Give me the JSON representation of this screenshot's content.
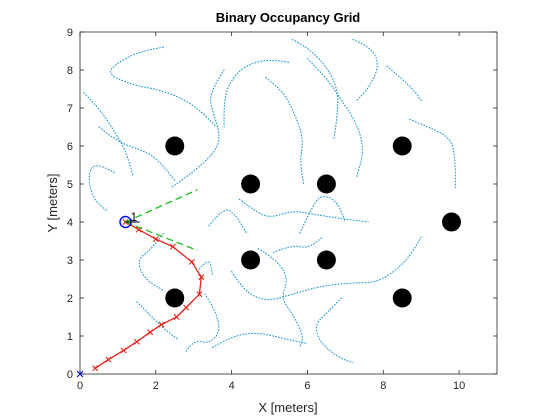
{
  "chart_data": {
    "type": "scatter",
    "title": "Binary Occupancy Grid",
    "xlabel": "X [meters]",
    "ylabel": "Y [meters]",
    "xlim": [
      0,
      11
    ],
    "ylim": [
      0,
      9
    ],
    "xticks": [
      0,
      2,
      4,
      6,
      8,
      10
    ],
    "yticks": [
      0,
      1,
      2,
      3,
      4,
      5,
      6,
      7,
      8,
      9
    ],
    "grid": false,
    "legend": "none",
    "obstacles": {
      "name": "occupied",
      "color": "#000000",
      "radius": 0.25,
      "points": [
        [
          2.5,
          6
        ],
        [
          8.5,
          6
        ],
        [
          4.5,
          5
        ],
        [
          6.5,
          5
        ],
        [
          9.8,
          4
        ],
        [
          4.5,
          3
        ],
        [
          6.5,
          3
        ],
        [
          2.5,
          2
        ],
        [
          8.5,
          2
        ]
      ]
    },
    "particle_trails": {
      "color": "#1e9bd7",
      "style": "dotted",
      "paths": [
        [
          [
            0.1,
            7.4
          ],
          [
            0.5,
            7.0
          ],
          [
            0.9,
            6.4
          ],
          [
            1.2,
            5.9
          ],
          [
            1.4,
            5.2
          ]
        ],
        [
          [
            0.9,
            5.3
          ],
          [
            0.4,
            5.6
          ],
          [
            0.2,
            5.2
          ],
          [
            0.35,
            4.6
          ],
          [
            0.7,
            4.3
          ]
        ],
        [
          [
            0.5,
            6.5
          ],
          [
            1.0,
            6.1
          ],
          [
            1.6,
            5.9
          ],
          [
            2.0,
            5.7
          ],
          [
            2.5,
            5.1
          ]
        ],
        [
          [
            2.2,
            8.6
          ],
          [
            1.6,
            8.5
          ],
          [
            1.0,
            8.2
          ],
          [
            0.7,
            7.9
          ],
          [
            1.4,
            7.6
          ],
          [
            2.0,
            7.5
          ],
          [
            2.6,
            7.3
          ],
          [
            3.1,
            7.0
          ],
          [
            3.6,
            6.5
          ]
        ],
        [
          [
            3.8,
            8.0
          ],
          [
            3.4,
            7.4
          ],
          [
            3.5,
            6.9
          ],
          [
            3.7,
            6.3
          ],
          [
            3.6,
            5.9
          ],
          [
            3.1,
            5.4
          ],
          [
            2.4,
            4.9
          ]
        ],
        [
          [
            5.5,
            8.2
          ],
          [
            5.0,
            8.3
          ],
          [
            4.3,
            8.1
          ],
          [
            3.9,
            7.6
          ],
          [
            3.8,
            7.1
          ],
          [
            3.8,
            6.5
          ]
        ],
        [
          [
            4.9,
            7.8
          ],
          [
            5.3,
            7.5
          ],
          [
            5.6,
            7.0
          ],
          [
            5.9,
            6.2
          ],
          [
            5.8,
            5.6
          ],
          [
            5.9,
            5.0
          ]
        ],
        [
          [
            5.6,
            8.8
          ],
          [
            6.0,
            8.6
          ],
          [
            6.5,
            8.1
          ],
          [
            6.8,
            7.5
          ],
          [
            6.8,
            6.9
          ],
          [
            6.7,
            6.2
          ]
        ],
        [
          [
            6.0,
            8.3
          ],
          [
            6.5,
            7.8
          ],
          [
            6.9,
            7.2
          ],
          [
            7.3,
            6.6
          ],
          [
            7.5,
            5.9
          ],
          [
            7.3,
            5.2
          ]
        ],
        [
          [
            7.2,
            8.8
          ],
          [
            7.7,
            8.6
          ],
          [
            7.9,
            8.1
          ],
          [
            7.6,
            7.5
          ],
          [
            7.3,
            7.2
          ]
        ],
        [
          [
            8.1,
            8.1
          ],
          [
            8.7,
            7.6
          ],
          [
            9.0,
            7.2
          ]
        ],
        [
          [
            8.7,
            6.7
          ],
          [
            9.2,
            6.5
          ],
          [
            9.8,
            6.2
          ],
          [
            9.9,
            5.6
          ],
          [
            9.9,
            4.9
          ]
        ],
        [
          [
            4.2,
            4.6
          ],
          [
            4.6,
            4.3
          ],
          [
            5.0,
            4.1
          ],
          [
            5.6,
            4.3
          ],
          [
            6.2,
            4.2
          ],
          [
            6.8,
            4.1
          ],
          [
            7.6,
            4.0
          ]
        ],
        [
          [
            5.8,
            3.7
          ],
          [
            6.2,
            4.6
          ],
          [
            6.5,
            4.7
          ],
          [
            6.8,
            4.5
          ],
          [
            7.0,
            4.0
          ]
        ],
        [
          [
            3.4,
            3.9
          ],
          [
            3.8,
            4.4
          ],
          [
            4.1,
            4.2
          ],
          [
            4.4,
            3.7
          ]
        ],
        [
          [
            2.2,
            3.7
          ],
          [
            1.9,
            3.3
          ],
          [
            1.5,
            3.0
          ],
          [
            1.7,
            2.5
          ],
          [
            2.2,
            2.2
          ]
        ],
        [
          [
            1.5,
            1.9
          ],
          [
            1.9,
            1.5
          ],
          [
            2.2,
            1.2
          ],
          [
            2.6,
            0.9
          ]
        ],
        [
          [
            2.8,
            0.6
          ],
          [
            3.0,
            0.9
          ],
          [
            3.4,
            0.8
          ],
          [
            3.7,
            1.1
          ],
          [
            3.6,
            1.6
          ],
          [
            3.3,
            2.1
          ]
        ],
        [
          [
            4.7,
            3.3
          ],
          [
            5.2,
            3.0
          ],
          [
            5.5,
            2.5
          ],
          [
            5.3,
            2.0
          ],
          [
            5.6,
            1.6
          ],
          [
            5.9,
            1.0
          ],
          [
            5.8,
            0.7
          ]
        ],
        [
          [
            4.0,
            2.7
          ],
          [
            4.3,
            2.2
          ],
          [
            4.9,
            1.9
          ],
          [
            5.6,
            2.1
          ],
          [
            6.3,
            2.3
          ],
          [
            7.1,
            2.4
          ],
          [
            7.8,
            2.4
          ],
          [
            8.3,
            2.7
          ],
          [
            8.7,
            3.1
          ],
          [
            9.0,
            3.6
          ]
        ],
        [
          [
            6.9,
            2.0
          ],
          [
            6.5,
            1.6
          ],
          [
            6.2,
            1.3
          ],
          [
            6.3,
            0.9
          ],
          [
            6.6,
            0.6
          ],
          [
            6.9,
            0.4
          ],
          [
            7.2,
            0.3
          ]
        ],
        [
          [
            3.5,
            0.7
          ],
          [
            4.0,
            1.0
          ],
          [
            4.7,
            1.1
          ],
          [
            5.5,
            0.9
          ],
          [
            6.0,
            0.8
          ]
        ],
        [
          [
            5.1,
            3.2
          ],
          [
            5.6,
            3.4
          ],
          [
            6.0,
            3.3
          ],
          [
            6.4,
            3.6
          ]
        ],
        [
          [
            3.1,
            2.7
          ],
          [
            3.4,
            3.1
          ],
          [
            3.5,
            2.6
          ]
        ]
      ]
    },
    "estimated_path": {
      "color": "#e3241b",
      "marker": "x",
      "points": [
        [
          0.4,
          0.15
        ],
        [
          0.75,
          0.38
        ],
        [
          1.15,
          0.62
        ],
        [
          1.5,
          0.85
        ],
        [
          1.85,
          1.1
        ],
        [
          2.15,
          1.3
        ],
        [
          2.55,
          1.5
        ],
        [
          2.8,
          1.75
        ],
        [
          3.15,
          2.1
        ],
        [
          3.2,
          2.55
        ],
        [
          2.95,
          2.95
        ],
        [
          2.45,
          3.35
        ],
        [
          2.0,
          3.55
        ],
        [
          1.55,
          3.8
        ],
        [
          1.2,
          4.0
        ]
      ]
    },
    "robot_pose": {
      "label": "1",
      "x": 1.2,
      "y": 4.0,
      "color": "#0000ff",
      "heading_deg": 0
    },
    "origin_marker": {
      "x": 0,
      "y": 0,
      "color": "#0000ff"
    },
    "range_sensor": {
      "color": "#22c122",
      "style": "dashed",
      "beam_ends": [
        [
          3.1,
          4.85
        ],
        [
          3.1,
          3.25
        ]
      ]
    }
  }
}
